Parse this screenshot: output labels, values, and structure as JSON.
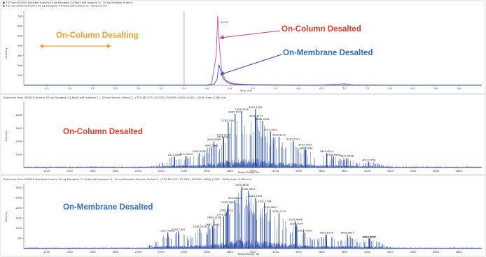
{
  "chart_data": [
    {
      "type": "line",
      "legend": [
        {
          "name": "TIC from 062010 Desalted Humira 50 ng Elongerol C4 Rep5.wiff (sample 1) - 50 ng Desalted Humira",
          "color": "#2e4fa8"
        },
        {
          "name": "TIC from 062516 Humira 50 ng Elongerol C4 Rep5.wiff (sample 1) - 50ng Humira",
          "color": "#d04a9a"
        }
      ],
      "xlabel": "Time, min",
      "ylabel": "Intensity",
      "xlim": [
        0,
        10
      ],
      "ylim": [
        0,
        7500000
      ],
      "x_ticks": [
        "0.5",
        "1.0",
        "1.5",
        "2.0",
        "2.5",
        "3.0",
        "3.5",
        "4.0",
        "4.5",
        "5.0",
        "5.5",
        "6.0",
        "6.5",
        "7.0",
        "7.5",
        "8.0",
        "8.5",
        "9.0",
        "9.5"
      ],
      "y_ticks": [
        "1e6",
        "2e6",
        "3e6",
        "4e6",
        "5e6",
        "6e6",
        "7e6"
      ],
      "peak_label": "4.234",
      "series": [
        {
          "name": "TIC 062516 Humira",
          "color": "#d04a9a",
          "x": [
            0,
            0.5,
            1,
            1.5,
            2,
            2.5,
            3,
            3.5,
            4.0,
            4.1,
            4.2,
            4.234,
            4.27,
            4.32,
            4.4,
            4.6,
            5,
            5.5,
            6,
            6.5,
            7,
            7.2,
            7.5,
            8,
            9,
            10
          ],
          "y": [
            0,
            0,
            0,
            0,
            0,
            0,
            0,
            0,
            0,
            150000,
            3000000,
            7000000,
            4000000,
            1500000,
            500000,
            150000,
            50000,
            20000,
            10000,
            10000,
            150000,
            10000,
            10000,
            0,
            0,
            0
          ]
        },
        {
          "name": "TIC 062010 Desalted Humira",
          "color": "#2e4fa8",
          "x": [
            0,
            0.5,
            1,
            1.5,
            2,
            2.5,
            3,
            3.5,
            4.0,
            4.15,
            4.22,
            4.26,
            4.3,
            4.35,
            4.45,
            4.6,
            5,
            5.5,
            6,
            6.5,
            7,
            8,
            9,
            10
          ],
          "y": [
            0,
            0,
            0,
            0,
            0,
            0,
            0,
            0,
            0,
            50000,
            600000,
            2100000,
            1400000,
            700000,
            250000,
            80000,
            30000,
            10000,
            0,
            0,
            0,
            0,
            0,
            0
          ]
        }
      ],
      "annotations": {
        "oncolumn_desalting": "On-Column Desalting",
        "oncolumn_desalted": "On-Column Desalted",
        "onmembrane_desalted": "On-Membrane Desalted"
      },
      "divider_x": 3.5
    },
    {
      "type": "line",
      "title": "Spectrum from 062516 Humira 50 ng Elongerol C4 Rep5.wiff (sample 1) - 50 ng Humira, Period 2, +TOF MS (CE=15 CES=30 DVP=3000) (1000 - 5000) from 4.262 min",
      "xlabel": "Mass/Charge, Da",
      "ylabel": "Intensity",
      "xlim": [
        1000,
        5000
      ],
      "ylim": [
        0,
        5000
      ],
      "x_ticks": [
        "1200",
        "1400",
        "1600",
        "1800",
        "2000",
        "2200",
        "2400",
        "2600",
        "2800",
        "3000",
        "3200",
        "3400",
        "3600",
        "3800",
        "4000",
        "4200",
        "4400",
        "4600",
        "4800"
      ],
      "y_ticks": [
        "1000",
        "2000",
        "3000",
        "4000"
      ],
      "label": "On-Column Desalted",
      "peaks": [
        {
          "mz": 2317.0642,
          "y": 850,
          "label": "2317.0642"
        },
        {
          "mz": 2417.4012,
          "y": 900,
          "label": "2417.4012"
        },
        {
          "mz": 2530.8331,
          "y": 1100,
          "label": "2530.8331"
        },
        {
          "mz": 2640.5341,
          "y": 1550,
          "label": "2640.5341"
        },
        {
          "mz": 2660.4986,
          "y": 2000,
          "label": "2660.4986"
        },
        {
          "mz": 2743.3176,
          "y": 2350,
          "label": "2743.3176"
        },
        {
          "mz": 2746.0327,
          "y": 2200,
          "label": "2746.0327"
        },
        {
          "mz": 2785.5463,
          "y": 3450,
          "label": "2785.5463"
        },
        {
          "mz": 2845.797,
          "y": 4100,
          "label": "2845.7970"
        },
        {
          "mz": 2903.0036,
          "y": 4300,
          "label": "2903.0036"
        },
        {
          "mz": 3023.1281,
          "y": 4450,
          "label": "3023.1281"
        },
        {
          "mz": 3028.3117,
          "y": 3800,
          "label": "3028.3117"
        },
        {
          "mz": 3085.4698,
          "y": 3550,
          "label": "3085.4698"
        },
        {
          "mz": 3154.1631,
          "y": 2750,
          "label": "3154.1631"
        },
        {
          "mz": 3228.9321,
          "y": 2350,
          "label": "3228.9321"
        },
        {
          "mz": 3352.5921,
          "y": 2050,
          "label": "3352.5921"
        },
        {
          "mz": 3457.2929,
          "y": 1600,
          "label": "3457.2929"
        },
        {
          "mz": 3463.9954,
          "y": 1350,
          "label": "3463.9954"
        },
        {
          "mz": 3645.6214,
          "y": 1100,
          "label": "3645.6214"
        },
        {
          "mz": 3705.696,
          "y": 850,
          "label": "3705.6960"
        },
        {
          "mz": 3821.5888,
          "y": 750,
          "label": "3821.5888"
        },
        {
          "mz": 4013.5758,
          "y": 450,
          "label": "4013.5758"
        }
      ]
    },
    {
      "type": "line",
      "title": "Spectrum from 062010 Desalted Humira 50 ng Elongerol C4 Rep5.wiff (sample 1) - 50 ng Desalted Humira, Period 2, +TOF MS (CE=15 CES=30 DVP=3000) (1000 - 5000) from 4.245 min",
      "xlabel": "Mass/Charge, Da",
      "ylabel": "Intensity",
      "xlim": [
        1000,
        5000
      ],
      "ylim": [
        0,
        3200
      ],
      "x_ticks": [
        "1200",
        "1400",
        "1600",
        "1800",
        "2000",
        "2200",
        "2400",
        "2600",
        "2800",
        "3000",
        "3200",
        "3400",
        "3600",
        "3800",
        "4000",
        "4200",
        "4400",
        "4600",
        "4800"
      ],
      "y_ticks": [
        "500",
        "1000",
        "1500",
        "2000",
        "2500",
        "3000"
      ],
      "label": "On-Membrane Desalted",
      "peaks": [
        {
          "mz": 2257.0642,
          "y": 800,
          "label": "2257.0642"
        },
        {
          "mz": 2350.7407,
          "y": 850,
          "label": "2350.7407"
        },
        {
          "mz": 2536.1616,
          "y": 1000,
          "label": "2536.1616"
        },
        {
          "mz": 2647.4964,
          "y": 1100,
          "label": "2647.4964"
        },
        {
          "mz": 2660.1326,
          "y": 1450,
          "label": "2660.1326"
        },
        {
          "mz": 2745.5317,
          "y": 1600,
          "label": "2745.5317"
        },
        {
          "mz": 2768.725,
          "y": 1800,
          "label": "2768.7250"
        },
        {
          "mz": 2785.365,
          "y": 2200,
          "label": "2785.3650"
        },
        {
          "mz": 2843.8043,
          "y": 2400,
          "label": "2843.8043"
        },
        {
          "mz": 2903.3608,
          "y": 3050,
          "label": "2903.3608"
        },
        {
          "mz": 2962.6627,
          "y": 2850,
          "label": "2962.6627"
        },
        {
          "mz": 3023.1045,
          "y": 2500,
          "label": "3023.1045"
        },
        {
          "mz": 3101.7196,
          "y": 2250,
          "label": "3101.7196"
        },
        {
          "mz": 3152.2845,
          "y": 1950,
          "label": "3152.2845"
        },
        {
          "mz": 3228.157,
          "y": 1750,
          "label": "3228.1570"
        },
        {
          "mz": 3373.4048,
          "y": 1350,
          "label": "3373.4048"
        },
        {
          "mz": 3378.7164,
          "y": 1150,
          "label": "3378.7164"
        },
        {
          "mz": 3453.796,
          "y": 800,
          "label": "3453.7960"
        },
        {
          "mz": 3642.8176,
          "y": 700,
          "label": "3642.8176"
        },
        {
          "mz": 3825.9633,
          "y": 700,
          "label": "3825.9633"
        },
        {
          "mz": 4014.6204,
          "y": 500,
          "label": "4014.6204"
        },
        {
          "mz": 4018.5037,
          "y": 500,
          "label": "4018.5037"
        }
      ]
    }
  ]
}
